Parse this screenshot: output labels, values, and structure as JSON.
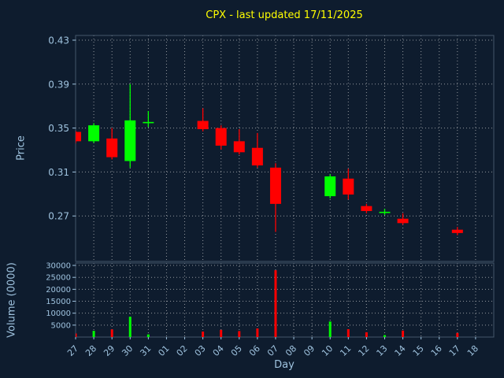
{
  "chart_data": {
    "type": "candlestick",
    "title": "CPX - last updated 17/11/2025",
    "xlabel": "Day",
    "x_tick_labels": [
      "27",
      "28",
      "29",
      "30",
      "31",
      "01",
      "02",
      "03",
      "04",
      "05",
      "06",
      "07",
      "08",
      "09",
      "10",
      "11",
      "12",
      "13",
      "14",
      "15",
      "16",
      "17",
      "18"
    ],
    "price_axis": {
      "label": "Price",
      "tick_values": [
        0.43,
        0.39,
        0.35,
        0.31,
        0.27
      ],
      "range": [
        0.2286,
        0.4343
      ]
    },
    "volume_axis": {
      "label": "Volume (0000)",
      "tick_values": [
        30000,
        25000,
        20000,
        15000,
        10000,
        5000
      ],
      "range": [
        0,
        31000
      ]
    },
    "colors": {
      "background": "#0e1c2e",
      "grid": "#d9d9d9",
      "tick_label": "#9fc3df",
      "axis_label": "#9fc3df",
      "title": "#ffff00",
      "up": "#00ff00",
      "down": "#ff0000",
      "spine": "#44566b"
    },
    "series": [
      {
        "day": "27",
        "open": 0.3465,
        "high": 0.3475,
        "low": 0.336,
        "close": 0.338,
        "volume": 1500
      },
      {
        "day": "28",
        "open": 0.338,
        "high": 0.3545,
        "low": 0.3365,
        "close": 0.3525,
        "volume": 2600
      },
      {
        "day": "29",
        "open": 0.3405,
        "high": 0.35,
        "low": 0.3215,
        "close": 0.3235,
        "volume": 3200
      },
      {
        "day": "30",
        "open": 0.32,
        "high": 0.39,
        "low": 0.314,
        "close": 0.357,
        "volume": 8500
      },
      {
        "day": "31",
        "open": 0.3545,
        "high": 0.3655,
        "low": 0.351,
        "close": 0.3555,
        "volume": 1100
      },
      {
        "day": "03",
        "open": 0.3565,
        "high": 0.368,
        "low": 0.347,
        "close": 0.349,
        "volume": 2300
      },
      {
        "day": "04",
        "open": 0.35,
        "high": 0.3525,
        "low": 0.3305,
        "close": 0.334,
        "volume": 3000
      },
      {
        "day": "05",
        "open": 0.338,
        "high": 0.349,
        "low": 0.326,
        "close": 0.328,
        "volume": 2500
      },
      {
        "day": "06",
        "open": 0.332,
        "high": 0.3455,
        "low": 0.314,
        "close": 0.316,
        "volume": 3600
      },
      {
        "day": "07",
        "open": 0.314,
        "high": 0.318,
        "low": 0.2555,
        "close": 0.281,
        "volume": 28000
      },
      {
        "day": "10",
        "open": 0.288,
        "high": 0.308,
        "low": 0.286,
        "close": 0.306,
        "volume": 6500
      },
      {
        "day": "11",
        "open": 0.304,
        "high": 0.313,
        "low": 0.285,
        "close": 0.2895,
        "volume": 3300
      },
      {
        "day": "12",
        "open": 0.279,
        "high": 0.281,
        "low": 0.2725,
        "close": 0.2745,
        "volume": 2000
      },
      {
        "day": "13",
        "open": 0.273,
        "high": 0.2765,
        "low": 0.271,
        "close": 0.2735,
        "volume": 800
      },
      {
        "day": "14",
        "open": 0.2675,
        "high": 0.2725,
        "low": 0.262,
        "close": 0.2635,
        "volume": 2700
      },
      {
        "day": "17",
        "open": 0.2575,
        "high": 0.26,
        "low": 0.2525,
        "close": 0.2545,
        "volume": 1700
      }
    ]
  }
}
